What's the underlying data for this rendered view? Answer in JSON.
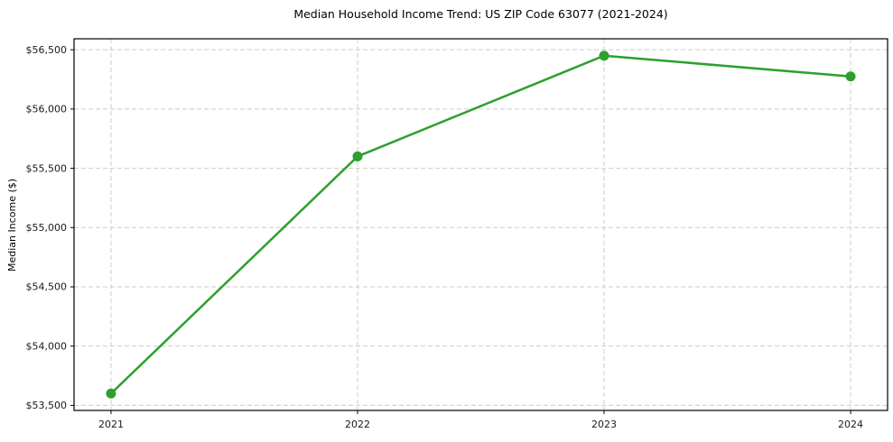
{
  "figure": {
    "background": "#ffffff"
  },
  "chart_data": {
    "type": "line",
    "title": "Median Household Income Trend: US ZIP Code 63077 (2021-2024)",
    "xlabel": "",
    "ylabel": "Median Income ($)",
    "x": [
      2021,
      2022,
      2023,
      2024
    ],
    "x_tick_labels": [
      "2021",
      "2022",
      "2023",
      "2024"
    ],
    "values": [
      53600,
      55600,
      56450,
      56275
    ],
    "y_ticks": [
      53500,
      54000,
      54500,
      55000,
      55500,
      56000,
      56500
    ],
    "y_tick_labels": [
      "$53,500",
      "$54,000",
      "$54,500",
      "$55,000",
      "$55,500",
      "$56,000",
      "$56,500"
    ],
    "xlim": [
      2020.85,
      2024.15
    ],
    "ylim": [
      53457.5,
      56592.5
    ],
    "grid": true,
    "legend_position": "none",
    "colors": {
      "line": "#2ca02c",
      "marker": "#2ca02c",
      "grid": "#cccccc",
      "spine": "#000000",
      "tick_label": "#1a1a1a",
      "title": "#000000"
    },
    "style": {
      "line_width": 2.5,
      "marker_radius": 5.5,
      "grid_dash": "5 3",
      "tick_length": 4,
      "tick_font_size": 11,
      "title_font_size": 12.5
    }
  }
}
